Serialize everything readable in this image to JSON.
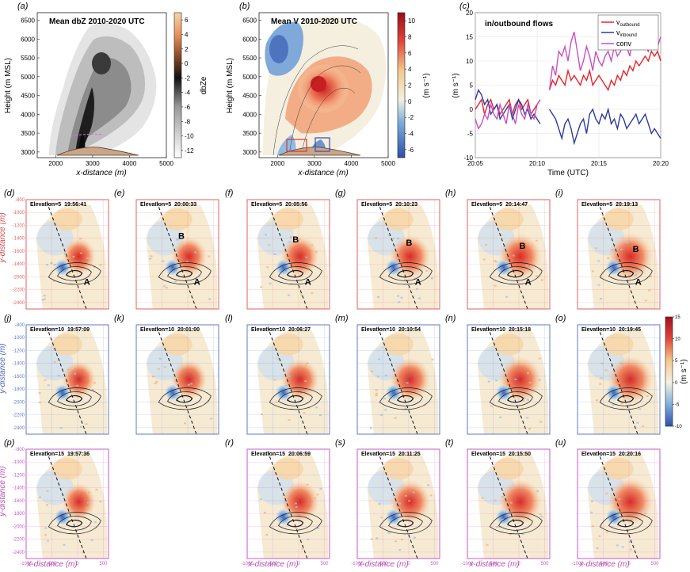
{
  "panel_labels": [
    "(a)",
    "(b)",
    "(c)",
    "(d)",
    "(e)",
    "(f)",
    "(g)",
    "(h)",
    "(i)",
    "(j)",
    "(k)",
    "(l)",
    "(m)",
    "(n)",
    "(o)",
    "(p)",
    "(r)",
    "(s)",
    "(t)",
    "(u)"
  ],
  "colors": {
    "row_elev5": "#e06060",
    "row_elev10": "#5f7bc4",
    "row_elev15": "#c659c4",
    "outbound": "#e8222a",
    "inbound": "#2b3aa0",
    "conv": "#c94fc0",
    "div_neg": "#2f4fa8",
    "div_pos": "#b0101a"
  },
  "chart_data": [
    {
      "id": "a",
      "type": "heatmap",
      "title": "Mean dbZ 2010-2020 UTC",
      "xlabel": "x-distance (m)",
      "ylabel": "Height (m MSL)",
      "xlim": [
        1500,
        5000
      ],
      "ylim": [
        2850,
        6700
      ],
      "xticks": [
        2000,
        3000,
        4000,
        5000
      ],
      "yticks": [
        3000,
        3500,
        4000,
        4500,
        5000,
        5500,
        6000,
        6500
      ],
      "colorbar": {
        "label": "dbZe",
        "ticks": [
          6,
          4,
          2,
          0,
          -2,
          -4,
          -6,
          -8,
          -10,
          -12
        ],
        "colormap": "gray-to-orange"
      }
    },
    {
      "id": "b",
      "type": "heatmap",
      "title": "Mean V  2010-2020 UTC",
      "xlabel": "x-distance (m)",
      "ylabel": "Height (m MSL)",
      "xlim": [
        1500,
        5000
      ],
      "ylim": [
        2850,
        6700
      ],
      "xticks": [
        2000,
        3000,
        4000,
        5000
      ],
      "yticks": [
        3000,
        3500,
        4000,
        4500,
        5000,
        5500,
        6000,
        6500
      ],
      "colorbar": {
        "label": "(m s⁻¹)",
        "ticks": [
          10,
          8,
          6,
          4,
          2,
          0,
          -2,
          -4,
          -6
        ],
        "colormap": "blue-white-red"
      }
    },
    {
      "id": "c",
      "type": "line",
      "title": "in/outbound flows",
      "xlabel": "Time (UTC)",
      "ylabel": "(m s⁻¹)",
      "ylim": [
        -10,
        20
      ],
      "yticks": [
        -10,
        -5,
        0,
        5,
        10,
        15,
        20
      ],
      "xticks": [
        "20:05",
        "20:10",
        "20:15",
        "20:20"
      ],
      "legend": "top-right",
      "x_minutes_after_2005": [
        0,
        0.25,
        0.5,
        0.75,
        1,
        1.25,
        1.5,
        1.75,
        2,
        2.25,
        2.5,
        2.75,
        3,
        3.25,
        3.5,
        3.75,
        4,
        4.25,
        4.5,
        4.75,
        5,
        5.25,
        5.5,
        6,
        6.25,
        6.5,
        6.75,
        7,
        7.25,
        7.5,
        7.75,
        8,
        8.25,
        8.5,
        8.75,
        9,
        9.25,
        9.5,
        9.75,
        10,
        10.25,
        10.5,
        10.75,
        11,
        11.25,
        11.5,
        11.75,
        12,
        12.25,
        12.5,
        12.75,
        13,
        13.25,
        13.5,
        13.75,
        14,
        14.25,
        14.5,
        14.75,
        15
      ],
      "series": [
        {
          "name": "v_outbound",
          "legend_main": "v",
          "legend_sub": "outbound",
          "values": [
            0,
            1,
            2,
            -1,
            1,
            2,
            0,
            1,
            -1,
            0,
            1,
            2,
            -1,
            1,
            2,
            0,
            1,
            2,
            -1,
            0,
            1,
            2,
            null,
            4,
            6,
            5,
            7,
            6,
            5,
            8,
            6,
            7,
            6,
            5,
            7,
            6,
            8,
            5,
            6,
            7,
            6,
            5,
            4,
            6,
            5,
            7,
            6,
            8,
            7,
            9,
            8,
            10,
            9,
            10,
            11,
            10,
            12,
            11,
            12,
            10
          ]
        },
        {
          "name": "v_inbound",
          "legend_main": "v",
          "legend_sub": "inbound",
          "values": [
            2,
            4,
            3,
            1,
            2,
            -1,
            0,
            1,
            -2,
            -1,
            0,
            1,
            -2,
            0,
            2,
            1,
            -1,
            0,
            -2,
            -1,
            -2,
            -3,
            null,
            0,
            -1,
            -2,
            -4,
            -6,
            -3,
            -2,
            -4,
            -7,
            -5,
            -3,
            -2,
            -5,
            -1,
            0,
            -2,
            -3,
            -1,
            -2,
            0,
            -3,
            -2,
            -4,
            -1,
            -2,
            -4,
            -3,
            -2,
            -1,
            -3,
            -2,
            -1,
            -3,
            -5,
            -4,
            -5,
            -6
          ]
        },
        {
          "name": "conv",
          "legend_main": "conv",
          "legend_sub": "",
          "values": [
            -2,
            -4,
            -3,
            -1,
            -2,
            1,
            -1,
            -2,
            1,
            -1,
            -3,
            1,
            -1,
            -3,
            1,
            -1,
            -2,
            1,
            -1,
            -2,
            1,
            2,
            null,
            4,
            9,
            7,
            12,
            11,
            13,
            10,
            14,
            16,
            12,
            8,
            10,
            13,
            11,
            8,
            12,
            10,
            9,
            11,
            12,
            10,
            13,
            11,
            12,
            14,
            13,
            11,
            15,
            13,
            14,
            16,
            13,
            12,
            16,
            14,
            13,
            15
          ]
        }
      ]
    },
    {
      "id": "ppi-grid",
      "type": "heatmap",
      "xlabel": "x-distance (m)",
      "ylabel": "y-distance (m)",
      "xlim": [
        -1000,
        600
      ],
      "ylim": [
        -2500,
        -800
      ],
      "xticks": [
        -1000,
        -500,
        0,
        500
      ],
      "yticks": [
        -800,
        -1000,
        -1200,
        -1400,
        -1600,
        -1800,
        -2000,
        -2200,
        -2400
      ],
      "colorbar": {
        "label": "(m s⁻¹)",
        "ticks": [
          15,
          10,
          5,
          0,
          -5,
          -10
        ],
        "colormap": "blue-white-red"
      },
      "rows": [
        {
          "elevation_label": "5",
          "panels": [
            {
              "id": "d",
              "time": "19:56:41",
              "markers": [
                "A"
              ]
            },
            {
              "id": "e",
              "time": "20:00:33",
              "markers": [
                "A",
                "B"
              ]
            },
            {
              "id": "f",
              "time": "20:05:56",
              "markers": [
                "A",
                "B"
              ]
            },
            {
              "id": "g",
              "time": "20:10:23",
              "markers": [
                "A",
                "B"
              ]
            },
            {
              "id": "h",
              "time": "20:14:47",
              "markers": [
                "A",
                "B"
              ]
            },
            {
              "id": "i",
              "time": "20:19:13",
              "markers": [
                "A",
                "B"
              ]
            }
          ]
        },
        {
          "elevation_label": "10",
          "panels": [
            {
              "id": "j",
              "time": "19:57:09",
              "markers": []
            },
            {
              "id": "k",
              "time": "20:01:00",
              "markers": []
            },
            {
              "id": "l",
              "time": "20:06:27",
              "markers": []
            },
            {
              "id": "m",
              "time": "20:10:54",
              "markers": []
            },
            {
              "id": "n",
              "time": "20:15:18",
              "markers": []
            },
            {
              "id": "o",
              "time": "20:19:45",
              "markers": []
            }
          ]
        },
        {
          "elevation_label": "15",
          "panels": [
            {
              "id": "p",
              "time": "19:57:36",
              "markers": []
            },
            null,
            {
              "id": "r",
              "time": "20:06:59",
              "markers": []
            },
            {
              "id": "s",
              "time": "20:11:25",
              "markers": []
            },
            {
              "id": "t",
              "time": "20:15:50",
              "markers": []
            },
            {
              "id": "u",
              "time": "20:20:16",
              "markers": []
            }
          ]
        }
      ]
    }
  ]
}
